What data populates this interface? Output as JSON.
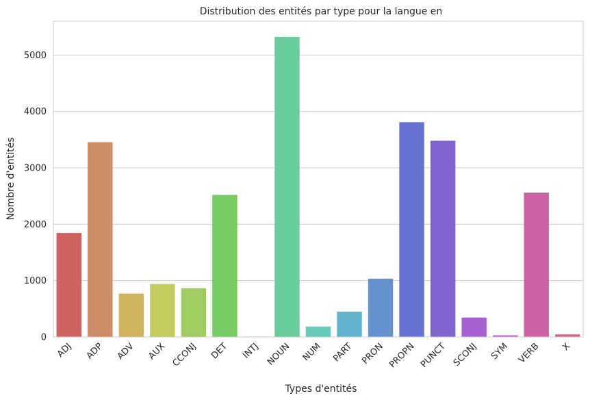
{
  "chart_data": {
    "type": "bar",
    "title": "Distribution des entités par type pour la langue en",
    "xlabel": "Types d'entités",
    "ylabel": "Nombre d'entités",
    "categories": [
      "ADJ",
      "ADP",
      "ADV",
      "AUX",
      "CCONJ",
      "DET",
      "INTJ",
      "NOUN",
      "NUM",
      "PART",
      "PRON",
      "PROPN",
      "PUNCT",
      "SCONJ",
      "SYM",
      "VERB",
      "X"
    ],
    "values": [
      1845,
      3455,
      770,
      940,
      865,
      2520,
      8,
      5320,
      185,
      450,
      1035,
      3810,
      3480,
      345,
      30,
      2560,
      45
    ],
    "colors": [
      "#cd625f",
      "#cc8d66",
      "#d0b35c",
      "#c4cc5d",
      "#9fcd61",
      "#76cd63",
      "#62cd7e",
      "#68cc9b",
      "#66cdbd",
      "#62b4ce",
      "#6392cf",
      "#6672cf",
      "#8164d0",
      "#a760d1",
      "#c960cc",
      "#cd62a6",
      "#cd6380"
    ],
    "yticks": [
      0,
      1000,
      2000,
      3000,
      4000,
      5000
    ],
    "ylim": [
      0,
      5600
    ],
    "grid": "horizontal"
  }
}
